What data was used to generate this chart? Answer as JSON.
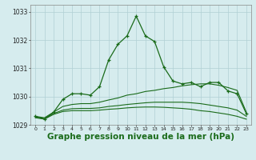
{
  "x": [
    0,
    1,
    2,
    3,
    4,
    5,
    6,
    7,
    8,
    9,
    10,
    11,
    12,
    13,
    14,
    15,
    16,
    17,
    18,
    19,
    20,
    21,
    22,
    23
  ],
  "line_main": [
    1029.3,
    1029.2,
    1029.45,
    1029.9,
    1030.1,
    1030.1,
    1030.05,
    1030.35,
    1031.3,
    1031.85,
    1032.15,
    1032.85,
    1032.15,
    1031.95,
    1031.05,
    1030.55,
    1030.45,
    1030.5,
    1030.35,
    1030.5,
    1030.5,
    1030.2,
    1030.1,
    1029.4
  ],
  "line_band1": [
    1029.3,
    1029.25,
    1029.45,
    1029.65,
    1029.72,
    1029.75,
    1029.75,
    1029.8,
    1029.88,
    1029.95,
    1030.05,
    1030.1,
    1030.18,
    1030.22,
    1030.28,
    1030.32,
    1030.38,
    1030.42,
    1030.45,
    1030.45,
    1030.4,
    1030.32,
    1030.22,
    1029.45
  ],
  "line_band2": [
    1029.28,
    1029.22,
    1029.4,
    1029.52,
    1029.57,
    1029.58,
    1029.58,
    1029.6,
    1029.65,
    1029.68,
    1029.72,
    1029.75,
    1029.78,
    1029.8,
    1029.8,
    1029.8,
    1029.8,
    1029.78,
    1029.75,
    1029.7,
    1029.65,
    1029.6,
    1029.52,
    1029.3
  ],
  "line_band3": [
    1029.25,
    1029.2,
    1029.37,
    1029.47,
    1029.5,
    1029.5,
    1029.5,
    1029.52,
    1029.55,
    1029.57,
    1029.6,
    1029.62,
    1029.63,
    1029.63,
    1029.62,
    1029.6,
    1029.58,
    1029.55,
    1029.5,
    1029.47,
    1029.42,
    1029.37,
    1029.3,
    1029.2
  ],
  "ylim": [
    1029.0,
    1033.25
  ],
  "yticks": [
    1029,
    1030,
    1031,
    1032,
    1033
  ],
  "xticks": [
    0,
    1,
    2,
    3,
    4,
    5,
    6,
    7,
    8,
    9,
    10,
    11,
    12,
    13,
    14,
    15,
    16,
    17,
    18,
    19,
    20,
    21,
    22,
    23
  ],
  "xlabel": "Graphe pression niveau de la mer (hPa)",
  "bg_color": "#d6ecee",
  "grid_color": "#b0d0d4",
  "line_color": "#1a6b1a",
  "xlabel_fontsize": 7.5
}
